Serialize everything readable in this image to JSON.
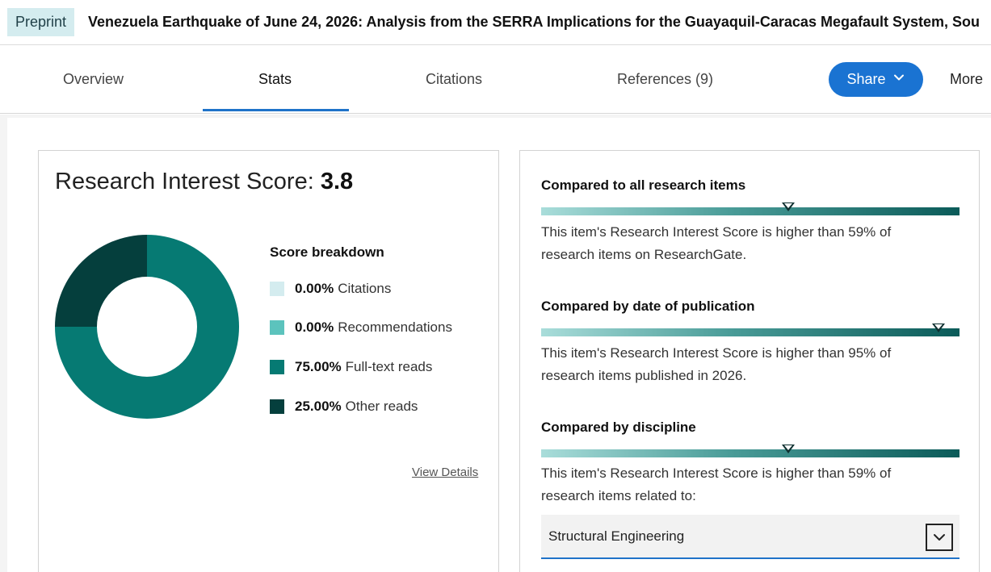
{
  "header": {
    "badge": "Preprint",
    "title": "Venezuela Earthquake of June 24, 2026: Analysis from the SERRA Implications for the Guayaquil-Caracas Megafault System, Sou"
  },
  "tabs": [
    {
      "label": "Overview"
    },
    {
      "label": "Stats"
    },
    {
      "label": "Citations"
    },
    {
      "label": "References (9)"
    }
  ],
  "active_tab": "Stats",
  "actions": {
    "share": "Share",
    "more": "More"
  },
  "score": {
    "label": "Research Interest Score:",
    "value": "3.8"
  },
  "breakdown": {
    "title": "Score breakdown",
    "items": [
      {
        "pct": "0.00%",
        "label": "Citations",
        "fraction": 0.0,
        "color": "#d4ecef"
      },
      {
        "pct": "0.00%",
        "label": "Recommendations",
        "fraction": 0.0,
        "color": "#5cc3bd"
      },
      {
        "pct": "75.00%",
        "label": "Full-text reads",
        "fraction": 0.75,
        "color": "#067a73"
      },
      {
        "pct": "25.00%",
        "label": "Other reads",
        "fraction": 0.25,
        "color": "#053f3d"
      }
    ],
    "view_details": "View Details"
  },
  "comparisons": [
    {
      "title": "Compared to all research items",
      "text": "This item's Research Interest Score is higher than 59% of research items on ResearchGate.",
      "percentile": 0.59
    },
    {
      "title": "Compared by date of publication",
      "text": "This item's Research Interest Score is higher than 95% of research items published in 2026.",
      "percentile": 0.95
    },
    {
      "title": "Compared by discipline",
      "text": "This item's Research Interest Score is higher than 59% of research items related to:",
      "percentile": 0.59
    }
  ],
  "discipline": {
    "selected": "Structural Engineering"
  },
  "colors": {
    "accent": "#1a73d2",
    "badge_bg": "#d4ecef"
  }
}
